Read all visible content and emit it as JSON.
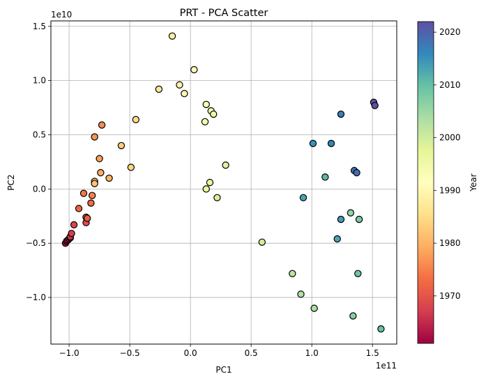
{
  "chart_data": {
    "type": "scatter",
    "title": "PRT - PCA Scatter",
    "xlabel": "PC1",
    "ylabel": "PC2",
    "x_offset_label": "1e11",
    "y_offset_label": "1e10",
    "xlim": [
      -1.15,
      1.7
    ],
    "ylim": [
      -1.43,
      1.55
    ],
    "xticks": [
      -1.0,
      -0.5,
      0.0,
      0.5,
      1.0,
      1.5
    ],
    "xtick_labels": [
      "−1.0",
      "−0.5",
      "0.0",
      "0.5",
      "1.0",
      "1.5"
    ],
    "yticks": [
      -1.0,
      -0.5,
      0.0,
      0.5,
      1.0,
      1.5
    ],
    "ytick_labels": [
      "−1.0",
      "−0.5",
      "0.0",
      "0.5",
      "1.0",
      "1.5"
    ],
    "grid": true,
    "colormap": "Spectral",
    "colorbar": {
      "label": "Year",
      "range": [
        1961,
        2022
      ],
      "ticks": [
        1970,
        1980,
        1990,
        2000,
        2010,
        2020
      ],
      "tick_labels": [
        "1970",
        "1980",
        "1990",
        "2000",
        "2010",
        "2020"
      ]
    },
    "points": [
      {
        "x": -1.03,
        "y": -0.5,
        "year": 1961
      },
      {
        "x": -1.02,
        "y": -0.48,
        "year": 1962
      },
      {
        "x": -1.01,
        "y": -0.47,
        "year": 1963
      },
      {
        "x": -1.0,
        "y": -0.46,
        "year": 1964
      },
      {
        "x": -0.99,
        "y": -0.45,
        "year": 1965
      },
      {
        "x": -0.99,
        "y": -0.44,
        "year": 1966
      },
      {
        "x": -0.98,
        "y": -0.41,
        "year": 1967
      },
      {
        "x": -0.96,
        "y": -0.33,
        "year": 1968
      },
      {
        "x": -0.86,
        "y": -0.31,
        "year": 1969
      },
      {
        "x": -0.86,
        "y": -0.26,
        "year": 1970
      },
      {
        "x": -0.85,
        "y": -0.27,
        "year": 1971
      },
      {
        "x": -0.92,
        "y": -0.18,
        "year": 1972
      },
      {
        "x": -0.82,
        "y": -0.13,
        "year": 1973
      },
      {
        "x": -0.88,
        "y": -0.04,
        "year": 1974
      },
      {
        "x": -0.81,
        "y": -0.06,
        "year": 1975
      },
      {
        "x": -0.73,
        "y": 0.59,
        "year": 1976
      },
      {
        "x": -0.79,
        "y": 0.48,
        "year": 1977
      },
      {
        "x": -0.75,
        "y": 0.28,
        "year": 1978
      },
      {
        "x": -0.74,
        "y": 0.15,
        "year": 1979
      },
      {
        "x": -0.67,
        "y": 0.1,
        "year": 1980
      },
      {
        "x": -0.79,
        "y": 0.07,
        "year": 1981
      },
      {
        "x": -0.79,
        "y": 0.05,
        "year": 1982
      },
      {
        "x": -0.57,
        "y": 0.4,
        "year": 1983
      },
      {
        "x": -0.49,
        "y": 0.2,
        "year": 1984
      },
      {
        "x": -0.45,
        "y": 0.64,
        "year": 1985
      },
      {
        "x": -0.26,
        "y": 0.92,
        "year": 1987
      },
      {
        "x": -0.15,
        "y": 1.41,
        "year": 1988
      },
      {
        "x": -0.09,
        "y": 0.96,
        "year": 1989
      },
      {
        "x": -0.05,
        "y": 0.88,
        "year": 1990
      },
      {
        "x": 0.03,
        "y": 1.1,
        "year": 1991
      },
      {
        "x": 0.13,
        "y": 0.78,
        "year": 1993
      },
      {
        "x": 0.17,
        "y": 0.72,
        "year": 1994
      },
      {
        "x": 0.12,
        "y": 0.62,
        "year": 1995
      },
      {
        "x": 0.19,
        "y": 0.69,
        "year": 1995
      },
      {
        "x": 0.13,
        "y": -0.0,
        "year": 1996
      },
      {
        "x": 0.16,
        "y": 0.06,
        "year": 1997
      },
      {
        "x": 0.29,
        "y": 0.22,
        "year": 1998
      },
      {
        "x": 0.22,
        "y": -0.08,
        "year": 1999
      },
      {
        "x": 0.59,
        "y": -0.49,
        "year": 2000
      },
      {
        "x": 0.84,
        "y": -0.78,
        "year": 2002
      },
      {
        "x": 0.91,
        "y": -0.97,
        "year": 2003
      },
      {
        "x": 1.02,
        "y": -1.1,
        "year": 2004
      },
      {
        "x": 1.32,
        "y": -0.22,
        "year": 2006
      },
      {
        "x": 1.34,
        "y": -1.17,
        "year": 2007
      },
      {
        "x": 1.39,
        "y": -0.28,
        "year": 2008
      },
      {
        "x": 1.38,
        "y": -0.78,
        "year": 2009
      },
      {
        "x": 1.57,
        "y": -1.29,
        "year": 2010
      },
      {
        "x": 1.11,
        "y": 0.11,
        "year": 2011
      },
      {
        "x": 0.93,
        "y": -0.08,
        "year": 2013
      },
      {
        "x": 1.21,
        "y": -0.46,
        "year": 2013
      },
      {
        "x": 1.24,
        "y": -0.28,
        "year": 2014
      },
      {
        "x": 1.01,
        "y": 0.42,
        "year": 2015
      },
      {
        "x": 1.16,
        "y": 0.42,
        "year": 2016
      },
      {
        "x": 1.24,
        "y": 0.69,
        "year": 2017
      },
      {
        "x": 1.35,
        "y": 0.17,
        "year": 2018
      },
      {
        "x": 1.37,
        "y": 0.15,
        "year": 2019
      },
      {
        "x": 1.51,
        "y": 0.8,
        "year": 2021
      },
      {
        "x": 1.52,
        "y": 0.77,
        "year": 2022
      }
    ]
  }
}
